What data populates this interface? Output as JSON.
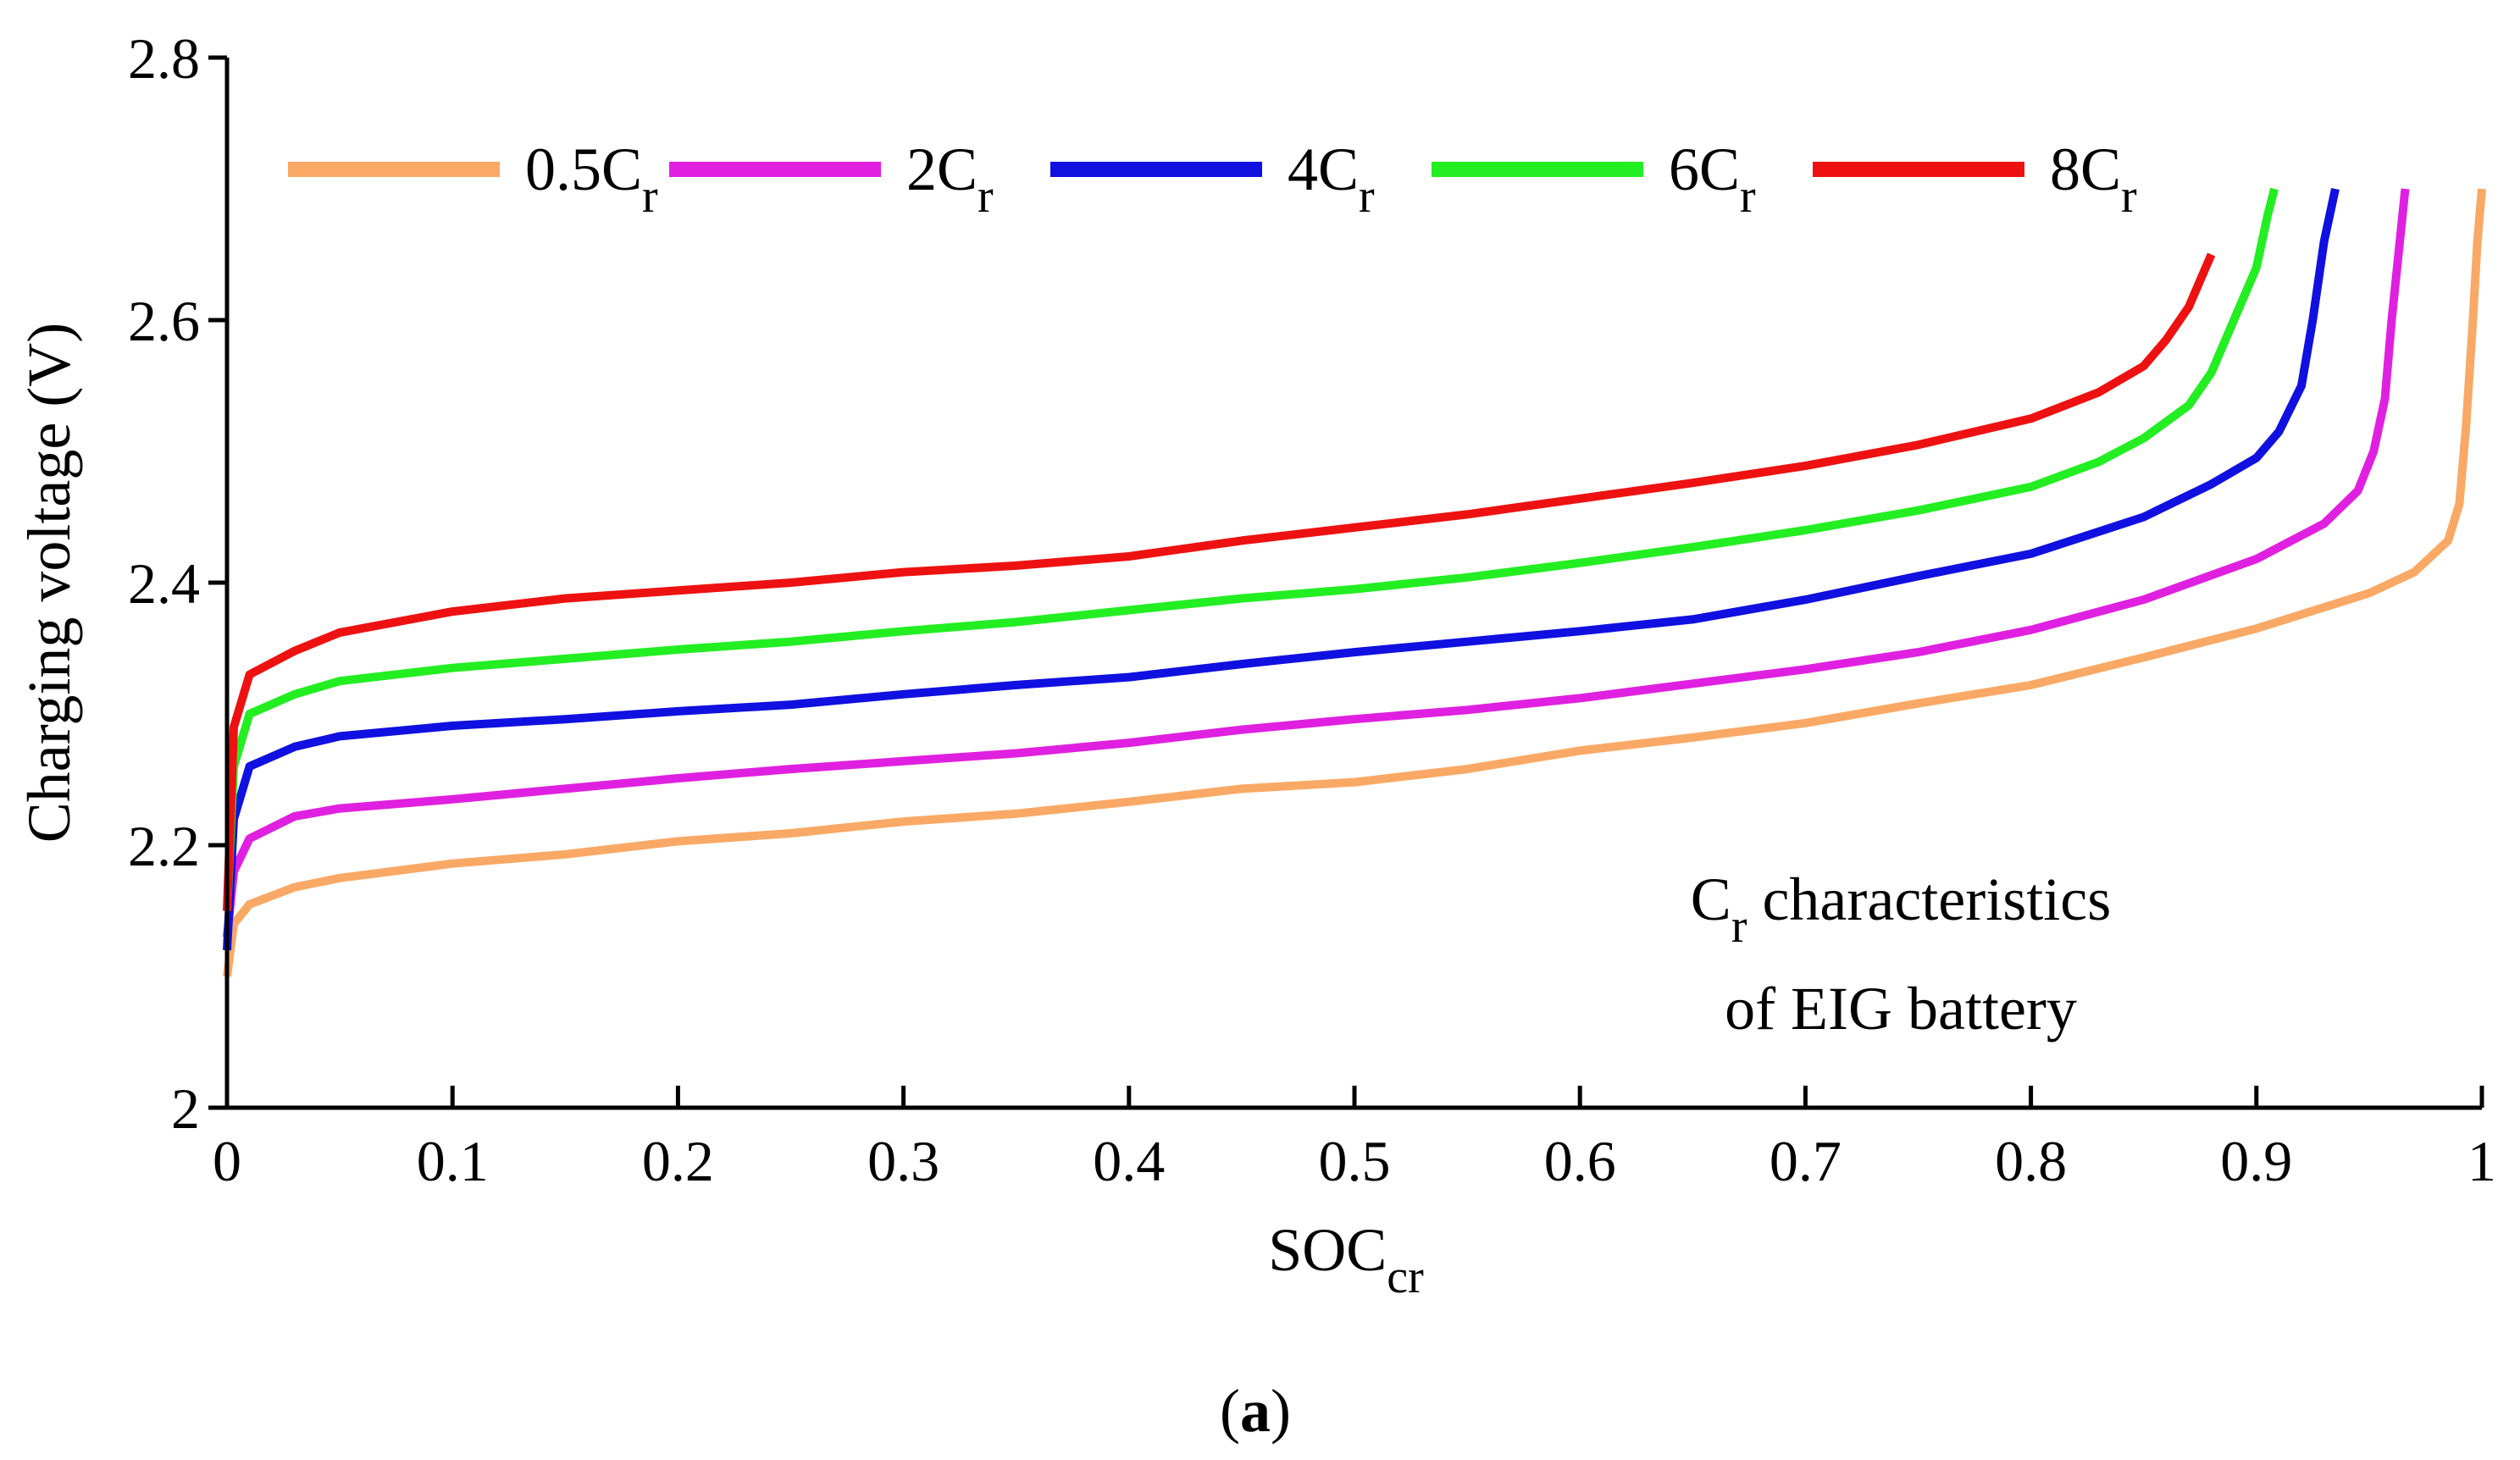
{
  "chart_data": {
    "type": "line",
    "title": "",
    "panel_label": {
      "open": "(",
      "letter": "a",
      "close": ")"
    },
    "xlabel": {
      "main": "SOC",
      "sub": "cr"
    },
    "ylabel": "Charging voltage (V)",
    "xlim": [
      0,
      1
    ],
    "ylim": [
      2,
      2.8
    ],
    "xticks": [
      0,
      0.1,
      0.2,
      0.3,
      0.4,
      0.5,
      0.6,
      0.7,
      0.8,
      0.9,
      1
    ],
    "xtick_labels": [
      "0",
      "0.1",
      "0.2",
      "0.3",
      "0.4",
      "0.5",
      "0.6",
      "0.7",
      "0.8",
      "0.9",
      "1"
    ],
    "yticks": [
      2,
      2.2,
      2.4,
      2.6,
      2.8
    ],
    "ytick_labels": [
      "2",
      "2.2",
      "2.4",
      "2.6",
      "2.8"
    ],
    "legend_position": "top",
    "annotation": {
      "line1_main": "C",
      "line1_sub": "r",
      "line1_rest": " characteristics",
      "line2": "of EIG battery"
    },
    "series": [
      {
        "name": "0.5C_r",
        "label_main": "0.5C",
        "label_sub": "r",
        "color": "#F9A965",
        "points": [
          [
            0,
            2.1
          ],
          [
            0.003,
            2.14
          ],
          [
            0.01,
            2.155
          ],
          [
            0.03,
            2.168
          ],
          [
            0.05,
            2.175
          ],
          [
            0.1,
            2.186
          ],
          [
            0.15,
            2.193
          ],
          [
            0.2,
            2.203
          ],
          [
            0.25,
            2.209
          ],
          [
            0.3,
            2.218
          ],
          [
            0.35,
            2.224
          ],
          [
            0.4,
            2.233
          ],
          [
            0.45,
            2.243
          ],
          [
            0.5,
            2.248
          ],
          [
            0.55,
            2.258
          ],
          [
            0.6,
            2.272
          ],
          [
            0.65,
            2.282
          ],
          [
            0.7,
            2.293
          ],
          [
            0.75,
            2.308
          ],
          [
            0.8,
            2.322
          ],
          [
            0.85,
            2.343
          ],
          [
            0.9,
            2.365
          ],
          [
            0.95,
            2.392
          ],
          [
            0.97,
            2.408
          ],
          [
            0.985,
            2.432
          ],
          [
            0.99,
            2.46
          ],
          [
            0.993,
            2.52
          ],
          [
            0.996,
            2.6
          ],
          [
            0.998,
            2.66
          ],
          [
            1.0,
            2.7
          ]
        ]
      },
      {
        "name": "2C_r",
        "label_main": "2C",
        "label_sub": "r",
        "color": "#E020E0",
        "points": [
          [
            0,
            2.13
          ],
          [
            0.003,
            2.18
          ],
          [
            0.01,
            2.205
          ],
          [
            0.03,
            2.222
          ],
          [
            0.05,
            2.228
          ],
          [
            0.1,
            2.235
          ],
          [
            0.15,
            2.243
          ],
          [
            0.2,
            2.251
          ],
          [
            0.25,
            2.258
          ],
          [
            0.3,
            2.264
          ],
          [
            0.35,
            2.27
          ],
          [
            0.4,
            2.278
          ],
          [
            0.45,
            2.288
          ],
          [
            0.5,
            2.296
          ],
          [
            0.55,
            2.303
          ],
          [
            0.6,
            2.312
          ],
          [
            0.65,
            2.323
          ],
          [
            0.7,
            2.334
          ],
          [
            0.75,
            2.347
          ],
          [
            0.8,
            2.364
          ],
          [
            0.85,
            2.387
          ],
          [
            0.9,
            2.418
          ],
          [
            0.93,
            2.445
          ],
          [
            0.945,
            2.47
          ],
          [
            0.952,
            2.5
          ],
          [
            0.957,
            2.54
          ],
          [
            0.96,
            2.6
          ],
          [
            0.963,
            2.65
          ],
          [
            0.966,
            2.7
          ]
        ]
      },
      {
        "name": "4C_r",
        "label_main": "4C",
        "label_sub": "r",
        "color": "#1010E0",
        "points": [
          [
            0,
            2.12
          ],
          [
            0.003,
            2.22
          ],
          [
            0.01,
            2.26
          ],
          [
            0.03,
            2.275
          ],
          [
            0.05,
            2.283
          ],
          [
            0.1,
            2.291
          ],
          [
            0.15,
            2.296
          ],
          [
            0.2,
            2.302
          ],
          [
            0.25,
            2.307
          ],
          [
            0.3,
            2.315
          ],
          [
            0.35,
            2.322
          ],
          [
            0.4,
            2.328
          ],
          [
            0.45,
            2.338
          ],
          [
            0.5,
            2.347
          ],
          [
            0.55,
            2.355
          ],
          [
            0.6,
            2.363
          ],
          [
            0.65,
            2.372
          ],
          [
            0.7,
            2.387
          ],
          [
            0.75,
            2.405
          ],
          [
            0.8,
            2.422
          ],
          [
            0.85,
            2.45
          ],
          [
            0.88,
            2.475
          ],
          [
            0.9,
            2.495
          ],
          [
            0.91,
            2.515
          ],
          [
            0.92,
            2.55
          ],
          [
            0.925,
            2.6
          ],
          [
            0.93,
            2.66
          ],
          [
            0.935,
            2.7
          ]
        ]
      },
      {
        "name": "6C_r",
        "label_main": "6C",
        "label_sub": "r",
        "color": "#22EE22",
        "points": [
          [
            0,
            2.15
          ],
          [
            0.003,
            2.26
          ],
          [
            0.01,
            2.3
          ],
          [
            0.03,
            2.315
          ],
          [
            0.05,
            2.325
          ],
          [
            0.1,
            2.335
          ],
          [
            0.15,
            2.342
          ],
          [
            0.2,
            2.349
          ],
          [
            0.25,
            2.355
          ],
          [
            0.3,
            2.363
          ],
          [
            0.35,
            2.37
          ],
          [
            0.4,
            2.379
          ],
          [
            0.45,
            2.388
          ],
          [
            0.5,
            2.395
          ],
          [
            0.55,
            2.404
          ],
          [
            0.6,
            2.415
          ],
          [
            0.65,
            2.427
          ],
          [
            0.7,
            2.44
          ],
          [
            0.75,
            2.455
          ],
          [
            0.8,
            2.473
          ],
          [
            0.83,
            2.492
          ],
          [
            0.85,
            2.51
          ],
          [
            0.87,
            2.535
          ],
          [
            0.88,
            2.56
          ],
          [
            0.89,
            2.6
          ],
          [
            0.9,
            2.64
          ],
          [
            0.905,
            2.68
          ],
          [
            0.908,
            2.7
          ]
        ]
      },
      {
        "name": "8C_r",
        "label_main": "8C",
        "label_sub": "r",
        "color": "#EE1111",
        "points": [
          [
            0,
            2.15
          ],
          [
            0.003,
            2.29
          ],
          [
            0.01,
            2.33
          ],
          [
            0.03,
            2.348
          ],
          [
            0.05,
            2.362
          ],
          [
            0.1,
            2.378
          ],
          [
            0.15,
            2.388
          ],
          [
            0.2,
            2.394
          ],
          [
            0.25,
            2.4
          ],
          [
            0.3,
            2.408
          ],
          [
            0.35,
            2.413
          ],
          [
            0.4,
            2.42
          ],
          [
            0.45,
            2.432
          ],
          [
            0.5,
            2.442
          ],
          [
            0.55,
            2.452
          ],
          [
            0.6,
            2.464
          ],
          [
            0.65,
            2.476
          ],
          [
            0.7,
            2.489
          ],
          [
            0.75,
            2.505
          ],
          [
            0.8,
            2.525
          ],
          [
            0.83,
            2.545
          ],
          [
            0.85,
            2.565
          ],
          [
            0.86,
            2.585
          ],
          [
            0.87,
            2.61
          ],
          [
            0.88,
            2.65
          ]
        ]
      }
    ]
  }
}
